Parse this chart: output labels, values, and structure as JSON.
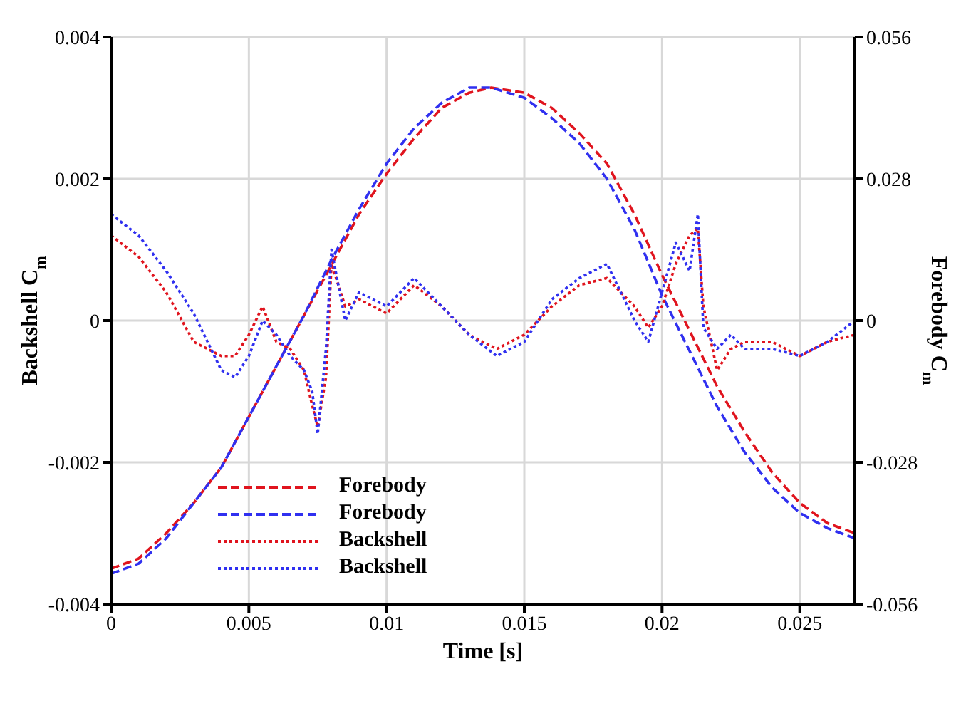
{
  "chart_data": {
    "type": "line",
    "xlabel": "Time [s]",
    "ylabel": "Backshell C$_{m}$",
    "y2label": "Forebody C$_{m}$",
    "xlim": [
      0,
      0.027
    ],
    "xticks": [
      0,
      0.005,
      0.01,
      0.015,
      0.02,
      0.025
    ],
    "ylim": [
      -0.004,
      0.004
    ],
    "yticks": [
      -0.004,
      -0.002,
      0,
      0.002,
      0.004
    ],
    "y2lim": [
      -0.056,
      0.056
    ],
    "y2ticks": [
      -0.056,
      -0.028,
      0,
      0.028,
      0.056
    ],
    "grid": true,
    "legend": "bottom",
    "marker": "none",
    "series": [
      {
        "name": "Forebody",
        "color": "#e0141e",
        "axis": "y2",
        "line_style": "dashed",
        "x": [
          0,
          0.001,
          0.002,
          0.003,
          0.004,
          0.005,
          0.006,
          0.007,
          0.008,
          0.009,
          0.01,
          0.011,
          0.012,
          0.013,
          0.0138,
          0.015,
          0.016,
          0.017,
          0.018,
          0.019,
          0.02,
          0.021,
          0.022,
          0.023,
          0.024,
          0.025,
          0.026,
          0.027
        ],
        "values": [
          -0.049,
          -0.047,
          -0.042,
          -0.036,
          -0.029,
          -0.019,
          -0.009,
          0.001,
          0.011,
          0.021,
          0.029,
          0.036,
          0.042,
          0.045,
          0.046,
          0.045,
          0.042,
          0.037,
          0.031,
          0.021,
          0.009,
          -0.002,
          -0.013,
          -0.022,
          -0.03,
          -0.036,
          -0.04,
          -0.042
        ]
      },
      {
        "name": "Forebody",
        "color": "#3030f0",
        "axis": "y2",
        "line_style": "dashed",
        "x": [
          0,
          0.001,
          0.002,
          0.003,
          0.004,
          0.005,
          0.006,
          0.007,
          0.008,
          0.009,
          0.01,
          0.011,
          0.012,
          0.013,
          0.0138,
          0.015,
          0.016,
          0.017,
          0.018,
          0.019,
          0.02,
          0.021,
          0.022,
          0.023,
          0.024,
          0.025,
          0.026,
          0.027
        ],
        "values": [
          -0.05,
          -0.048,
          -0.043,
          -0.036,
          -0.029,
          -0.019,
          -0.009,
          0.001,
          0.012,
          0.022,
          0.031,
          0.038,
          0.043,
          0.046,
          0.046,
          0.044,
          0.04,
          0.035,
          0.028,
          0.018,
          0.005,
          -0.006,
          -0.017,
          -0.026,
          -0.033,
          -0.038,
          -0.041,
          -0.043
        ]
      },
      {
        "name": "Backshell",
        "color": "#e0141e",
        "line_style": "dotted",
        "x": [
          0,
          0.001,
          0.002,
          0.003,
          0.004,
          0.0045,
          0.005,
          0.0055,
          0.006,
          0.0065,
          0.007,
          0.0073,
          0.0075,
          0.0078,
          0.008,
          0.0085,
          0.009,
          0.01,
          0.011,
          0.012,
          0.013,
          0.014,
          0.015,
          0.016,
          0.017,
          0.018,
          0.019,
          0.0195,
          0.02,
          0.0205,
          0.021,
          0.0213,
          0.0215,
          0.022,
          0.0225,
          0.023,
          0.024,
          0.025,
          0.026,
          0.027
        ],
        "values": [
          0.0012,
          0.0009,
          0.0004,
          -0.0003,
          -0.0005,
          -0.0005,
          -0.0002,
          0.0002,
          -0.0003,
          -0.0004,
          -0.0007,
          -0.0012,
          -0.0015,
          -0.0008,
          0.0008,
          0.0002,
          0.0003,
          0.0001,
          0.0005,
          0.0002,
          -0.0002,
          -0.0004,
          -0.0002,
          0.0002,
          0.0005,
          0.0006,
          0.0002,
          -0.0001,
          0.0002,
          0.0008,
          0.0012,
          0.0013,
          0.0002,
          -0.0007,
          -0.0004,
          -0.0003,
          -0.0003,
          -0.0005,
          -0.0003,
          -0.0002
        ]
      },
      {
        "name": "Backshell",
        "color": "#3030f0",
        "line_style": "dotted",
        "x": [
          0,
          0.001,
          0.002,
          0.003,
          0.004,
          0.0045,
          0.005,
          0.0055,
          0.006,
          0.0065,
          0.007,
          0.0073,
          0.0075,
          0.0078,
          0.008,
          0.0085,
          0.009,
          0.01,
          0.011,
          0.012,
          0.013,
          0.014,
          0.015,
          0.016,
          0.017,
          0.018,
          0.019,
          0.0195,
          0.02,
          0.0205,
          0.021,
          0.0213,
          0.0215,
          0.022,
          0.0225,
          0.023,
          0.024,
          0.025,
          0.026,
          0.027
        ],
        "values": [
          0.0015,
          0.0012,
          0.0007,
          0.0001,
          -0.0007,
          -0.0008,
          -0.0005,
          0,
          -0.0002,
          -0.0005,
          -0.0007,
          -0.001,
          -0.0016,
          -0.0004,
          0.001,
          0,
          0.0004,
          0.0002,
          0.0006,
          0.0002,
          -0.0002,
          -0.0005,
          -0.0003,
          0.0003,
          0.0006,
          0.0008,
          0,
          -0.0003,
          0.0004,
          0.0011,
          0.0007,
          0.0015,
          -0.0001,
          -0.0004,
          -0.0002,
          -0.0004,
          -0.0004,
          -0.0005,
          -0.0003,
          0
        ]
      }
    ]
  }
}
